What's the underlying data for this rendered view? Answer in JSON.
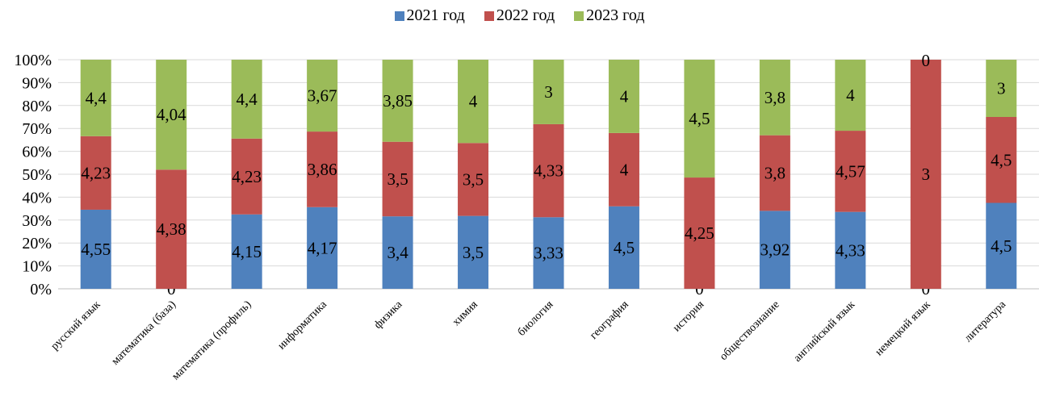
{
  "chart_data": {
    "type": "bar",
    "stacked": "percent",
    "title": "",
    "xlabel": "",
    "ylabel": "",
    "categories": [
      "русский язык",
      "математика (база)",
      "математика (профиль)",
      "информатика",
      "физика",
      "химия",
      "биология",
      "география",
      "история",
      "обществознание",
      "английский язык",
      "немецкий язык",
      "литература"
    ],
    "series": [
      {
        "name": "2021 год",
        "color": "#4f81bd",
        "values": [
          4.55,
          0,
          4.15,
          4.17,
          3.4,
          3.5,
          3.33,
          4.5,
          0,
          3.92,
          4.33,
          0,
          4.5
        ],
        "labels": [
          "4,55",
          "0",
          "4,15",
          "4,17",
          "3,4",
          "3,5",
          "3,33",
          "4,5",
          "0",
          "3,92",
          "4,33",
          "0",
          "4,5"
        ]
      },
      {
        "name": "2022 год",
        "color": "#c0504d",
        "values": [
          4.23,
          4.38,
          4.23,
          3.86,
          3.5,
          3.5,
          4.33,
          4,
          4.25,
          3.8,
          4.57,
          3,
          4.5
        ],
        "labels": [
          "4,23",
          "4,38",
          "4,23",
          "3,86",
          "3,5",
          "3,5",
          "4,33",
          "4",
          "4,25",
          "3,8",
          "4,57",
          "3",
          "4,5"
        ]
      },
      {
        "name": "2023 год",
        "color": "#9bbb59",
        "values": [
          4.4,
          4.04,
          4.4,
          3.67,
          3.85,
          4,
          3,
          4,
          4.5,
          3.8,
          4,
          0,
          3
        ],
        "labels": [
          "4,4",
          "4,04",
          "4,4",
          "3,67",
          "3,85",
          "4",
          "3",
          "4",
          "4,5",
          "3,8",
          "4",
          "0",
          "3"
        ]
      }
    ],
    "y_ticks": [
      "0%",
      "10%",
      "20%",
      "30%",
      "40%",
      "50%",
      "60%",
      "70%",
      "80%",
      "90%",
      "100%"
    ],
    "ylim": [
      0,
      100
    ],
    "grid": true,
    "legend_position": "top"
  }
}
